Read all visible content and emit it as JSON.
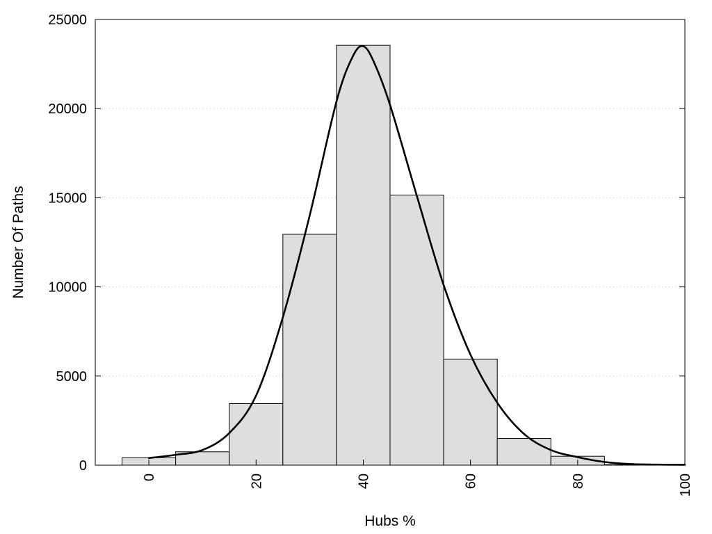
{
  "chart_data": {
    "type": "bar",
    "title": "",
    "xlabel": "Hubs %",
    "ylabel": "Number Of Paths",
    "xlim": [
      -10,
      100
    ],
    "ylim": [
      0,
      25000
    ],
    "x_ticks": [
      0,
      20,
      40,
      60,
      80,
      100
    ],
    "y_ticks": [
      0,
      5000,
      10000,
      15000,
      20000,
      25000
    ],
    "grid": "horizontal dotted",
    "legend": "none",
    "bin_width": 10,
    "bins": [
      {
        "center": 0,
        "value": 420
      },
      {
        "center": 10,
        "value": 750
      },
      {
        "center": 20,
        "value": 3450
      },
      {
        "center": 30,
        "value": 12950
      },
      {
        "center": 40,
        "value": 23550
      },
      {
        "center": 50,
        "value": 15150
      },
      {
        "center": 60,
        "value": 5950
      },
      {
        "center": 70,
        "value": 1500
      },
      {
        "center": 80,
        "value": 500
      },
      {
        "center": 90,
        "value": 30
      }
    ],
    "density_curve": {
      "x": [
        0,
        5,
        10,
        15,
        20,
        25,
        30,
        35,
        38,
        40,
        42,
        45,
        50,
        55,
        60,
        65,
        70,
        75,
        80,
        85,
        90,
        95,
        100
      ],
      "y": [
        400,
        580,
        850,
        1800,
        3900,
        8300,
        14000,
        20400,
        22900,
        23500,
        22600,
        20200,
        15100,
        10100,
        6200,
        3500,
        1750,
        850,
        450,
        180,
        60,
        30,
        20
      ]
    },
    "colors": {
      "bar_fill": "#dedede",
      "bar_stroke": "#000000",
      "curve": "#000000",
      "grid": "#bbbbbb",
      "frame": "#000000"
    }
  }
}
